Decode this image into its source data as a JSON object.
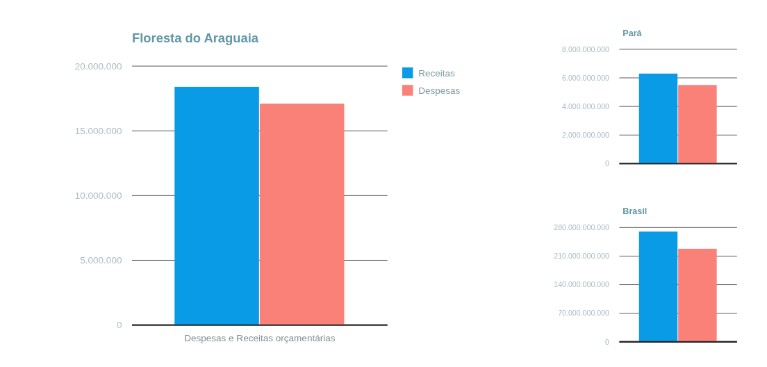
{
  "chart_data": [
    {
      "type": "bar",
      "title": "Floresta do Araguaia",
      "categories": [
        "Despesas e Receitas orçamentárias"
      ],
      "series": [
        {
          "name": "Receitas",
          "color": "#0a9be6",
          "values": [
            18400000
          ]
        },
        {
          "name": "Despesas",
          "color": "#f98178",
          "values": [
            17100000
          ]
        }
      ],
      "ylim": [
        0,
        20000000
      ],
      "yticks": [
        {
          "value": 0,
          "label": "0"
        },
        {
          "value": 5000000,
          "label": "5.000.000"
        },
        {
          "value": 10000000,
          "label": "10.000.000"
        },
        {
          "value": 15000000,
          "label": "15.000.000"
        },
        {
          "value": 20000000,
          "label": "20.000.000"
        }
      ],
      "grid": "y",
      "legend": "right"
    },
    {
      "type": "bar",
      "title": "Pará",
      "categories": [
        null
      ],
      "series": [
        {
          "color": "#0a9be6",
          "values": [
            6300000000
          ]
        },
        {
          "color": "#f98178",
          "values": [
            5500000000
          ]
        }
      ],
      "ylim": [
        0,
        8000000000
      ],
      "yticks": [
        {
          "value": 0,
          "label": "0"
        },
        {
          "value": 2000000000,
          "label": "2.000.000.000"
        },
        {
          "value": 4000000000,
          "label": "4.000.000.000"
        },
        {
          "value": 6000000000,
          "label": "6.000.000.000"
        },
        {
          "value": 8000000000,
          "label": "8.000.000.000"
        }
      ],
      "grid": "y"
    },
    {
      "type": "bar",
      "title": "Brasil",
      "categories": [
        null
      ],
      "series": [
        {
          "color": "#0a9be6",
          "values": [
            270000000000
          ]
        },
        {
          "color": "#f98178",
          "values": [
            228000000000
          ]
        }
      ],
      "ylim": [
        0,
        280000000000
      ],
      "yticks": [
        {
          "value": 0,
          "label": "0"
        },
        {
          "value": 70000000000,
          "label": "70.000.000.000"
        },
        {
          "value": 140000000000,
          "label": "140.000.000.000"
        },
        {
          "value": 210000000000,
          "label": "210.000.000.000"
        },
        {
          "value": 280000000000,
          "label": "280.000.000.000"
        }
      ],
      "grid": "y"
    }
  ]
}
